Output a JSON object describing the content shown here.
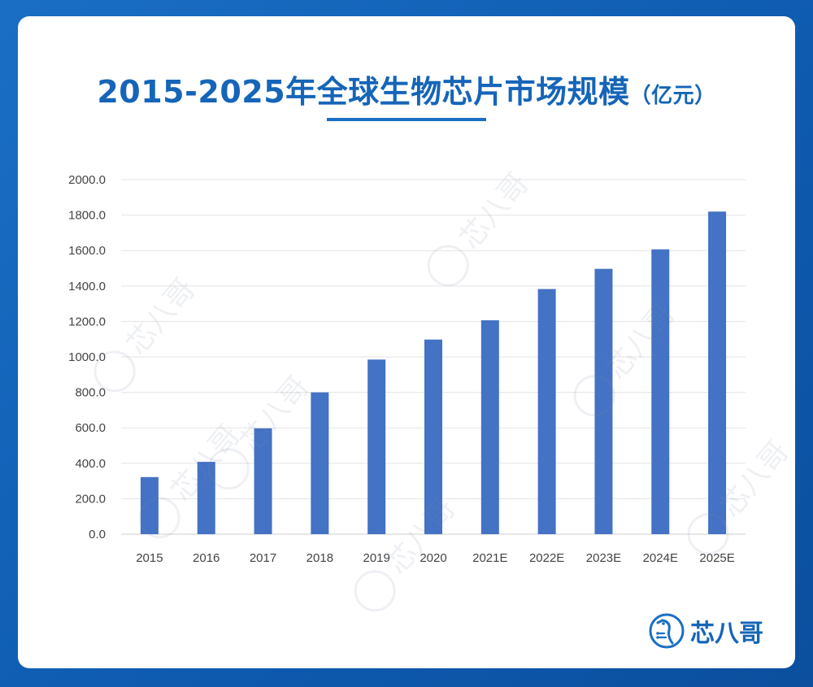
{
  "header": {
    "title": "2015-2025年全球生物芯片市场规模",
    "unit": "（亿元）"
  },
  "brand": {
    "name": "芯八哥",
    "watermark": "芯八哥",
    "icon": "bird-logo-icon"
  },
  "colors": {
    "bar": "#4472c4",
    "title": "#1565b8",
    "background": "#1a6fc4"
  },
  "chart_data": {
    "type": "bar",
    "title": "2015-2025年全球生物芯片市场规模（亿元）",
    "xlabel": "",
    "ylabel": "",
    "categories": [
      "2015",
      "2016",
      "2017",
      "2018",
      "2019",
      "2020",
      "2021E",
      "2022E",
      "2023E",
      "2024E",
      "2025E"
    ],
    "values": [
      322,
      408,
      597,
      800,
      985,
      1098,
      1207,
      1383,
      1497,
      1607,
      1820
    ],
    "ylim": [
      0,
      2000
    ],
    "yticks": [
      "0.0",
      "200.0",
      "400.0",
      "600.0",
      "800.0",
      "1000.0",
      "1200.0",
      "1400.0",
      "1600.0",
      "1800.0",
      "2000.0"
    ],
    "grid": true,
    "legend": "none"
  }
}
